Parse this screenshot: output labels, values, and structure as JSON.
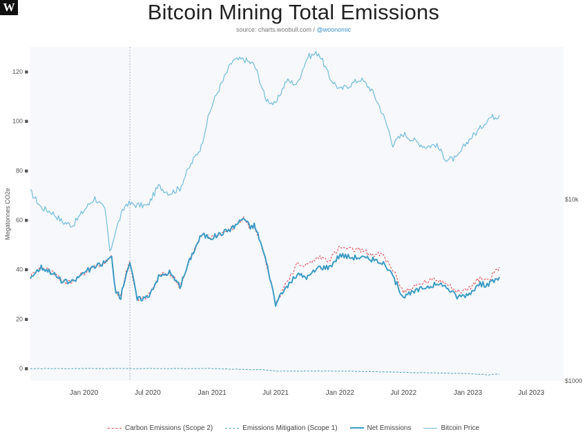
{
  "logo_text": "W",
  "title": "Bitcoin Mining Total Emissions",
  "subtitle": {
    "source": "source: charts.woobull.com / ",
    "handle": "@woonomic"
  },
  "colors": {
    "carbon": "#e0474c",
    "mitigation": "#4aa3b8",
    "net": "#3d9cc4",
    "price": "#72bcd8",
    "plot_bg": "#f6f8fc",
    "marker": "#b0b8c8"
  },
  "chart_data": {
    "type": "line",
    "title": "Bitcoin Mining Total Emissions",
    "ylabel": "Megatonnes CO2e",
    "ylim": [
      -5,
      130
    ],
    "yticks": [
      "0 ■",
      "20 ■",
      "40 ■",
      "60 ■",
      "80 ■",
      "100 ■",
      "120 ■"
    ],
    "yticks_values": [
      0,
      20,
      40,
      60,
      80,
      100,
      120
    ],
    "y2_scale": "log",
    "y2lim": [
      1000,
      69000
    ],
    "y2ticks": [
      "$1000",
      "$10k"
    ],
    "y2ticks_values": [
      1000,
      10000
    ],
    "xlim": [
      "2019-08-01",
      "2023-10-01"
    ],
    "xticks": [
      "Jan 2020",
      "Jul 2020",
      "Jan 2021",
      "Jul 2021",
      "Jan 2022",
      "Jul 2022",
      "Jan 2023",
      "Jul 2023"
    ],
    "xticks_values": [
      "2020-01-01",
      "2020-07-01",
      "2021-01-01",
      "2021-07-01",
      "2022-01-01",
      "2022-07-01",
      "2023-01-01",
      "2023-07-01"
    ],
    "vertical_marker": "2020-05-11",
    "legend_position": "bottom",
    "series": [
      {
        "name": "Carbon Emissions (Scope 2)",
        "style": "dashed",
        "points": [
          [
            "2019-08-01",
            37
          ],
          [
            "2019-09-01",
            41
          ],
          [
            "2019-10-01",
            39
          ],
          [
            "2019-11-01",
            35
          ],
          [
            "2019-12-01",
            35
          ],
          [
            "2020-01-01",
            39
          ],
          [
            "2020-02-01",
            41
          ],
          [
            "2020-03-01",
            43
          ],
          [
            "2020-03-20",
            45
          ],
          [
            "2020-04-01",
            31
          ],
          [
            "2020-04-15",
            29
          ],
          [
            "2020-05-01",
            39
          ],
          [
            "2020-05-11",
            43
          ],
          [
            "2020-06-01",
            28
          ],
          [
            "2020-07-01",
            29
          ],
          [
            "2020-08-01",
            37
          ],
          [
            "2020-09-01",
            39
          ],
          [
            "2020-10-01",
            33
          ],
          [
            "2020-11-01",
            45
          ],
          [
            "2020-12-01",
            54
          ],
          [
            "2021-01-01",
            53
          ],
          [
            "2021-02-01",
            55
          ],
          [
            "2021-03-01",
            57
          ],
          [
            "2021-04-01",
            61
          ],
          [
            "2021-04-20",
            57
          ],
          [
            "2021-05-01",
            58
          ],
          [
            "2021-05-15",
            53
          ],
          [
            "2021-06-01",
            45
          ],
          [
            "2021-06-15",
            37
          ],
          [
            "2021-07-01",
            26
          ],
          [
            "2021-08-01",
            35
          ],
          [
            "2021-09-01",
            42
          ],
          [
            "2021-10-01",
            42
          ],
          [
            "2021-11-01",
            45
          ],
          [
            "2021-12-01",
            44
          ],
          [
            "2022-01-01",
            49
          ],
          [
            "2022-02-01",
            48
          ],
          [
            "2022-03-01",
            48
          ],
          [
            "2022-04-01",
            46
          ],
          [
            "2022-05-01",
            46
          ],
          [
            "2022-06-01",
            40
          ],
          [
            "2022-07-01",
            31
          ],
          [
            "2022-08-01",
            33
          ],
          [
            "2022-09-01",
            35
          ],
          [
            "2022-10-01",
            36
          ],
          [
            "2022-11-01",
            35
          ],
          [
            "2022-12-01",
            31
          ],
          [
            "2023-01-01",
            32
          ],
          [
            "2023-02-01",
            36
          ],
          [
            "2023-03-01",
            36
          ],
          [
            "2023-04-01",
            41
          ]
        ]
      },
      {
        "name": "Emissions Mitigation (Scope 1)",
        "style": "dashed",
        "points": [
          [
            "2019-08-01",
            0
          ],
          [
            "2020-01-01",
            0
          ],
          [
            "2020-06-01",
            0
          ],
          [
            "2021-01-01",
            0
          ],
          [
            "2021-06-01",
            -0.5
          ],
          [
            "2021-07-01",
            -1
          ],
          [
            "2022-01-01",
            -1
          ],
          [
            "2022-07-01",
            -1.5
          ],
          [
            "2023-01-01",
            -2
          ],
          [
            "2023-03-01",
            -2.5
          ],
          [
            "2023-04-01",
            -2.2
          ]
        ]
      },
      {
        "name": "Net Emissions",
        "style": "solid",
        "points": [
          [
            "2019-08-01",
            37
          ],
          [
            "2019-09-01",
            41
          ],
          [
            "2019-10-01",
            39
          ],
          [
            "2019-11-01",
            35
          ],
          [
            "2019-12-01",
            35
          ],
          [
            "2020-01-01",
            39
          ],
          [
            "2020-02-01",
            41
          ],
          [
            "2020-03-01",
            43
          ],
          [
            "2020-03-20",
            45
          ],
          [
            "2020-04-01",
            31
          ],
          [
            "2020-04-15",
            29
          ],
          [
            "2020-05-01",
            39
          ],
          [
            "2020-05-11",
            43
          ],
          [
            "2020-06-01",
            28
          ],
          [
            "2020-07-01",
            29
          ],
          [
            "2020-08-01",
            37
          ],
          [
            "2020-09-01",
            39
          ],
          [
            "2020-10-01",
            33
          ],
          [
            "2020-11-01",
            45
          ],
          [
            "2020-12-01",
            54
          ],
          [
            "2021-01-01",
            53
          ],
          [
            "2021-02-01",
            55
          ],
          [
            "2021-03-01",
            57
          ],
          [
            "2021-04-01",
            61
          ],
          [
            "2021-04-20",
            57
          ],
          [
            "2021-05-01",
            58
          ],
          [
            "2021-05-15",
            53
          ],
          [
            "2021-06-01",
            45
          ],
          [
            "2021-06-15",
            37
          ],
          [
            "2021-07-01",
            26
          ],
          [
            "2021-08-01",
            33
          ],
          [
            "2021-09-01",
            38
          ],
          [
            "2021-10-01",
            37
          ],
          [
            "2021-11-01",
            41
          ],
          [
            "2021-12-01",
            41
          ],
          [
            "2022-01-01",
            46
          ],
          [
            "2022-02-01",
            45
          ],
          [
            "2022-03-01",
            45
          ],
          [
            "2022-04-01",
            44
          ],
          [
            "2022-05-01",
            43
          ],
          [
            "2022-06-01",
            37
          ],
          [
            "2022-07-01",
            29
          ],
          [
            "2022-08-01",
            31
          ],
          [
            "2022-09-01",
            33
          ],
          [
            "2022-10-01",
            34
          ],
          [
            "2022-11-01",
            33
          ],
          [
            "2022-12-01",
            29
          ],
          [
            "2023-01-01",
            30
          ],
          [
            "2023-02-01",
            34
          ],
          [
            "2023-03-01",
            34
          ],
          [
            "2023-04-01",
            37
          ]
        ]
      },
      {
        "name": "Bitcoin Price",
        "style": "solid",
        "axis": "right",
        "points": [
          [
            "2019-08-01",
            11000
          ],
          [
            "2019-09-01",
            9000
          ],
          [
            "2019-10-01",
            8500
          ],
          [
            "2019-11-01",
            7500
          ],
          [
            "2019-12-01",
            7200
          ],
          [
            "2020-01-01",
            8700
          ],
          [
            "2020-02-01",
            10200
          ],
          [
            "2020-03-01",
            8700
          ],
          [
            "2020-03-15",
            5000
          ],
          [
            "2020-04-01",
            6800
          ],
          [
            "2020-05-01",
            9500
          ],
          [
            "2020-06-01",
            9300
          ],
          [
            "2020-07-01",
            9200
          ],
          [
            "2020-08-01",
            11800
          ],
          [
            "2020-09-01",
            10800
          ],
          [
            "2020-10-01",
            11500
          ],
          [
            "2020-11-01",
            15500
          ],
          [
            "2020-12-01",
            19500
          ],
          [
            "2021-01-01",
            33000
          ],
          [
            "2021-02-01",
            45000
          ],
          [
            "2021-03-01",
            58000
          ],
          [
            "2021-04-01",
            59000
          ],
          [
            "2021-05-01",
            55000
          ],
          [
            "2021-06-01",
            36000
          ],
          [
            "2021-07-01",
            33000
          ],
          [
            "2021-08-01",
            45000
          ],
          [
            "2021-09-01",
            43000
          ],
          [
            "2021-10-01",
            61000
          ],
          [
            "2021-11-01",
            64000
          ],
          [
            "2021-12-01",
            47000
          ],
          [
            "2022-01-01",
            40000
          ],
          [
            "2022-02-01",
            43000
          ],
          [
            "2022-03-01",
            46000
          ],
          [
            "2022-04-01",
            40000
          ],
          [
            "2022-05-01",
            30000
          ],
          [
            "2022-06-01",
            20000
          ],
          [
            "2022-07-01",
            23000
          ],
          [
            "2022-08-01",
            21000
          ],
          [
            "2022-09-01",
            19500
          ],
          [
            "2022-10-01",
            20000
          ],
          [
            "2022-11-01",
            16500
          ],
          [
            "2022-12-01",
            16800
          ],
          [
            "2023-01-01",
            21000
          ],
          [
            "2023-02-01",
            24000
          ],
          [
            "2023-03-01",
            28000
          ],
          [
            "2023-04-01",
            29000
          ]
        ]
      }
    ]
  },
  "legend": [
    {
      "label": "Carbon Emissions (Scope 2)"
    },
    {
      "label": "Emissions Mitigation (Scope 1)"
    },
    {
      "label": "Net Emissions"
    },
    {
      "label": "Bitcoin Price"
    }
  ]
}
